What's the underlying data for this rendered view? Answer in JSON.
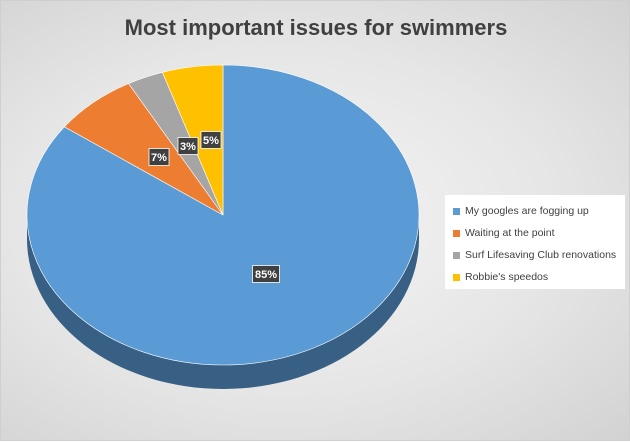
{
  "chart_data": {
    "type": "pie",
    "title": "Most important issues for swimmers",
    "categories": [
      "My googles are fogging up",
      "Waiting at the point",
      "Surf Lifesaving Club renovations",
      "Robbie's speedos"
    ],
    "values": [
      85,
      7,
      3,
      5
    ],
    "data_labels": [
      "85%",
      "7%",
      "3%",
      "5%"
    ],
    "colors": [
      "#5b9bd5",
      "#ed7d31",
      "#a5a5a5",
      "#ffc000"
    ],
    "legend_position": "right",
    "style": "3d"
  }
}
